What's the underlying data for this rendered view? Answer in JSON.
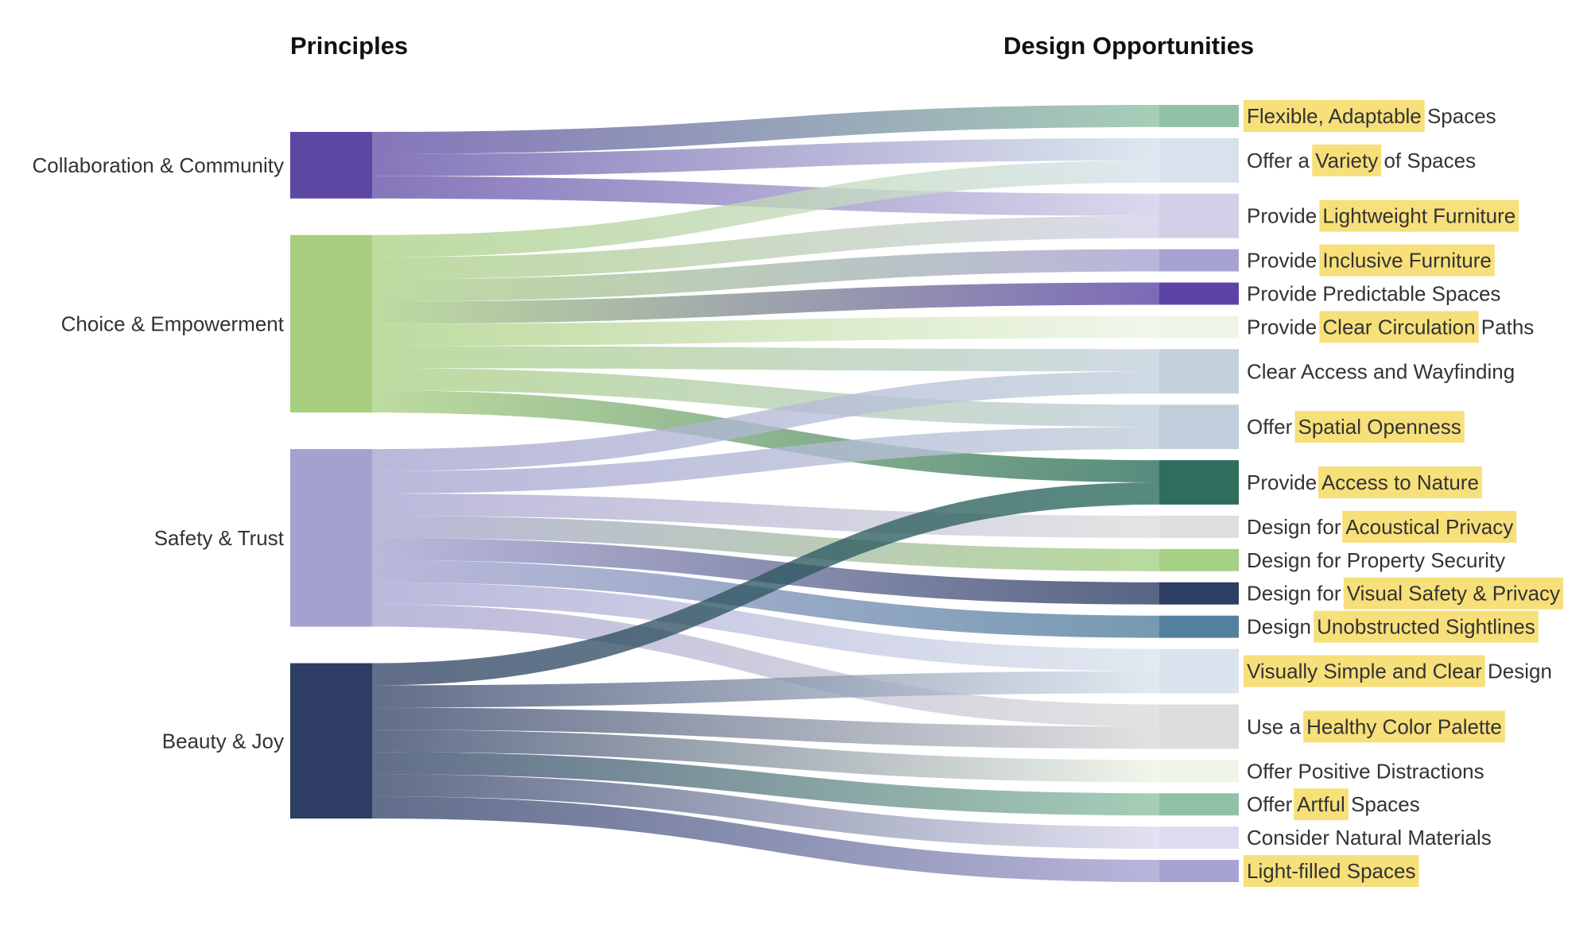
{
  "headers": {
    "principles": "Principles",
    "opportunities": "Design Opportunities"
  },
  "chart_data": {
    "type": "sankey",
    "title": "",
    "sources": [
      {
        "name": "Collaboration & Community",
        "color": "#5c48a3",
        "value": 3
      },
      {
        "name": "Choice & Empowerment",
        "color": "#a8cf80",
        "value": 8
      },
      {
        "name": "Safety & Trust",
        "color": "#a4a1cf",
        "value": 8
      },
      {
        "name": "Beauty & Joy",
        "color": "#2d3d63",
        "value": 7
      }
    ],
    "targets": [
      {
        "parts": [
          {
            "t": "Flexible, Adaptable",
            "h": true
          },
          {
            "t": " Spaces",
            "h": false
          }
        ],
        "color": "#91c2a6",
        "value": 1
      },
      {
        "parts": [
          {
            "t": "Offer a ",
            "h": false
          },
          {
            "t": "Variety",
            "h": true
          },
          {
            "t": " of Spaces",
            "h": false
          }
        ],
        "color": "#d7e2ec",
        "value": 2
      },
      {
        "parts": [
          {
            "t": "Provide ",
            "h": false
          },
          {
            "t": "Lightweight Furniture",
            "h": true
          }
        ],
        "color": "#d2d0e8",
        "value": 2
      },
      {
        "parts": [
          {
            "t": "Provide ",
            "h": false
          },
          {
            "t": "Inclusive Furniture",
            "h": true
          }
        ],
        "color": "#a6a3d3",
        "value": 1
      },
      {
        "parts": [
          {
            "t": "Provide Predictable Spaces",
            "h": false
          }
        ],
        "color": "#5b44a6",
        "value": 1
      },
      {
        "parts": [
          {
            "t": "Provide ",
            "h": false
          },
          {
            "t": "Clear Circulation",
            "h": true
          },
          {
            "t": " Paths",
            "h": false
          }
        ],
        "color": "#eef5e6",
        "value": 1
      },
      {
        "parts": [
          {
            "t": "Clear Access and Wayfinding",
            "h": false
          }
        ],
        "color": "#c3d1dd",
        "value": 2
      },
      {
        "parts": [
          {
            "t": "Offer ",
            "h": false
          },
          {
            "t": "Spatial Openness",
            "h": true
          }
        ],
        "color": "#c0cedb",
        "value": 2
      },
      {
        "parts": [
          {
            "t": "Provide ",
            "h": false
          },
          {
            "t": "Access to Nature",
            "h": true
          }
        ],
        "color": "#2d6e5d",
        "value": 2
      },
      {
        "parts": [
          {
            "t": "Design for ",
            "h": false
          },
          {
            "t": "Acoustical Privacy",
            "h": true
          }
        ],
        "color": "#dedede",
        "value": 1
      },
      {
        "parts": [
          {
            "t": "Design for Property Security",
            "h": false
          }
        ],
        "color": "#a6d184",
        "value": 1
      },
      {
        "parts": [
          {
            "t": "Design for ",
            "h": false
          },
          {
            "t": "Visual Safety & Privacy",
            "h": true
          }
        ],
        "color": "#2d3d63",
        "value": 1
      },
      {
        "parts": [
          {
            "t": "Design ",
            "h": false
          },
          {
            "t": "Unobstructed Sightlines",
            "h": true
          }
        ],
        "color": "#53809e",
        "value": 1
      },
      {
        "parts": [
          {
            "t": "Visually Simple and Clear",
            "h": true
          },
          {
            "t": " Design",
            "h": false
          }
        ],
        "color": "#dae4ee",
        "value": 2
      },
      {
        "parts": [
          {
            "t": "Use a ",
            "h": false
          },
          {
            "t": "Healthy Color Palette",
            "h": true
          }
        ],
        "color": "#dcdcdc",
        "value": 2
      },
      {
        "parts": [
          {
            "t": "Offer Positive Distractions",
            "h": false
          }
        ],
        "color": "#eef5e6",
        "value": 1
      },
      {
        "parts": [
          {
            "t": "Offer ",
            "h": false
          },
          {
            "t": "Artful",
            "h": true
          },
          {
            "t": " Spaces",
            "h": false
          }
        ],
        "color": "#91c2a6",
        "value": 1
      },
      {
        "parts": [
          {
            "t": "Consider Natural Materials",
            "h": false
          }
        ],
        "color": "#dcdbef",
        "value": 1
      },
      {
        "parts": [
          {
            "t": "Light-filled Spaces",
            "h": true
          }
        ],
        "color": "#a6a3d3",
        "value": 1
      }
    ],
    "links": [
      {
        "source": 0,
        "target": 0,
        "value": 1
      },
      {
        "source": 0,
        "target": 1,
        "value": 1
      },
      {
        "source": 0,
        "target": 2,
        "value": 1
      },
      {
        "source": 1,
        "target": 1,
        "value": 1
      },
      {
        "source": 1,
        "target": 2,
        "value": 1
      },
      {
        "source": 1,
        "target": 3,
        "value": 1
      },
      {
        "source": 1,
        "target": 4,
        "value": 1
      },
      {
        "source": 1,
        "target": 5,
        "value": 1
      },
      {
        "source": 1,
        "target": 6,
        "value": 1
      },
      {
        "source": 1,
        "target": 7,
        "value": 1
      },
      {
        "source": 1,
        "target": 8,
        "value": 1
      },
      {
        "source": 2,
        "target": 6,
        "value": 1
      },
      {
        "source": 2,
        "target": 7,
        "value": 1
      },
      {
        "source": 2,
        "target": 9,
        "value": 1
      },
      {
        "source": 2,
        "target": 10,
        "value": 1
      },
      {
        "source": 2,
        "target": 11,
        "value": 1
      },
      {
        "source": 2,
        "target": 12,
        "value": 1
      },
      {
        "source": 2,
        "target": 13,
        "value": 1
      },
      {
        "source": 2,
        "target": 14,
        "value": 1
      },
      {
        "source": 3,
        "target": 8,
        "value": 1
      },
      {
        "source": 3,
        "target": 13,
        "value": 1
      },
      {
        "source": 3,
        "target": 14,
        "value": 1
      },
      {
        "source": 3,
        "target": 15,
        "value": 1
      },
      {
        "source": 3,
        "target": 16,
        "value": 1
      },
      {
        "source": 3,
        "target": 17,
        "value": 1
      },
      {
        "source": 3,
        "target": 18,
        "value": 1
      }
    ]
  }
}
